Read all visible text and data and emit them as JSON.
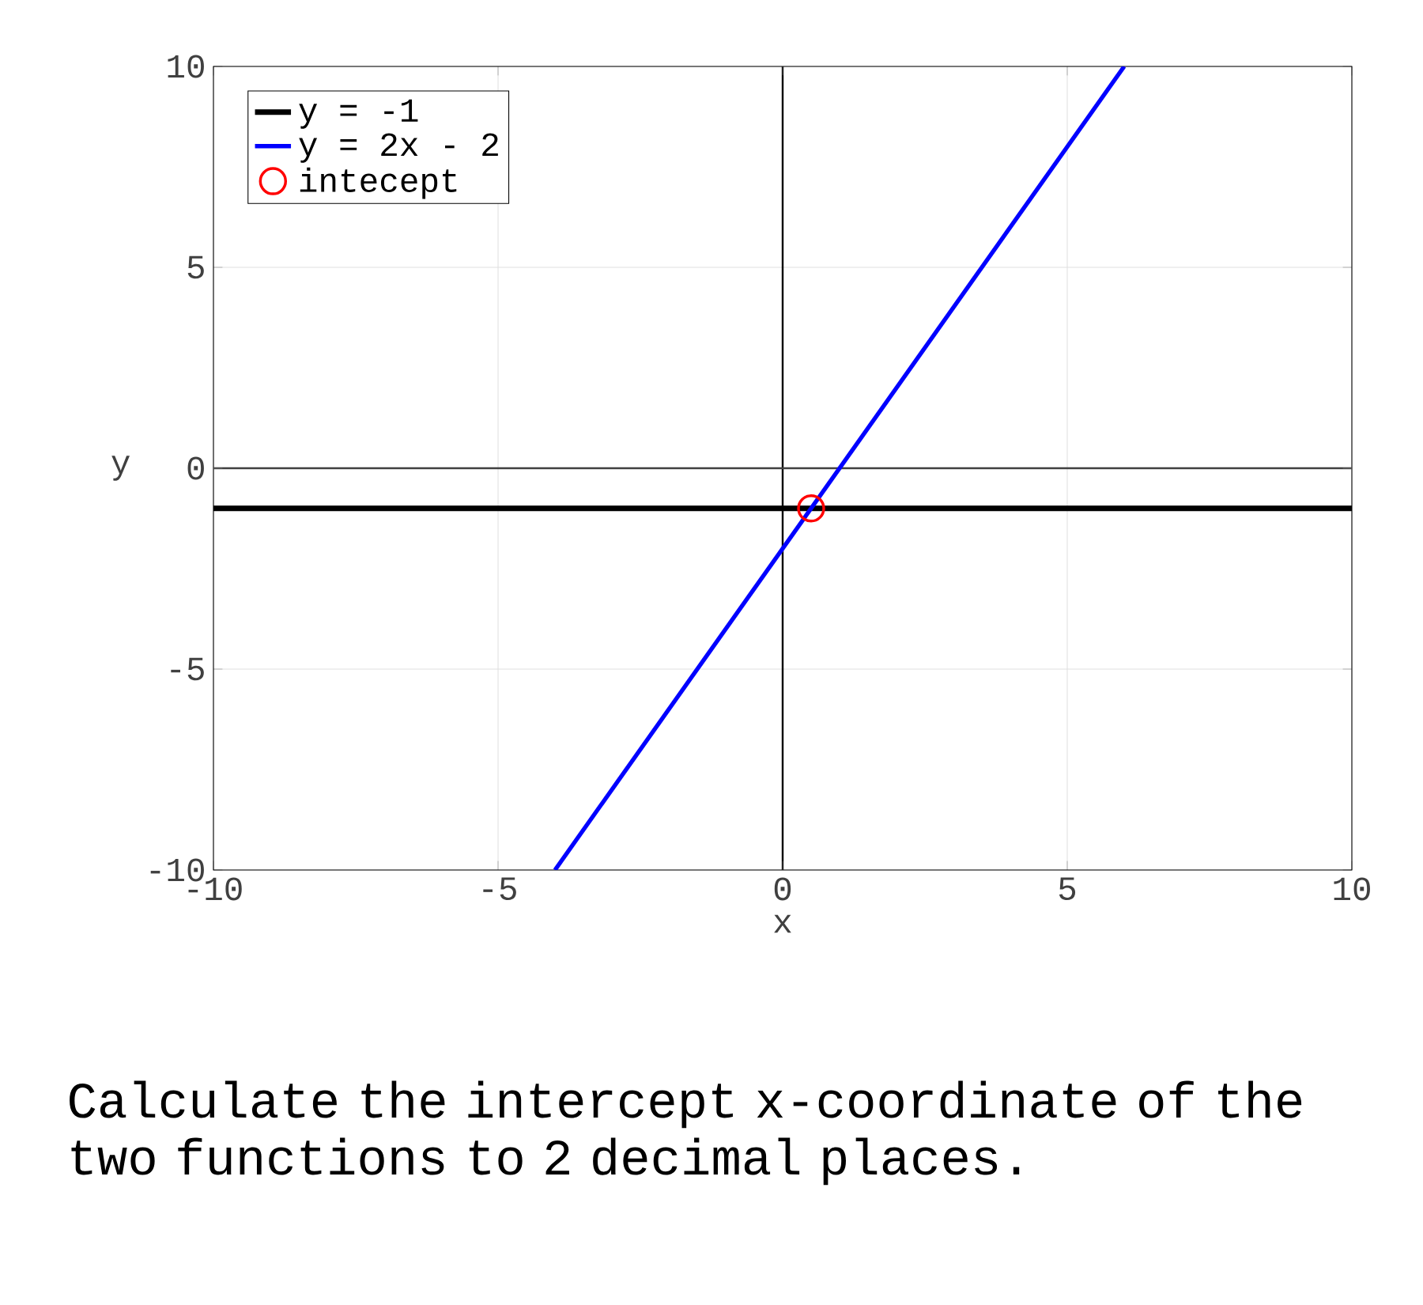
{
  "chart_data": {
    "type": "line",
    "xlabel": "x",
    "ylabel": "y",
    "xlim": [
      -10,
      10
    ],
    "ylim": [
      -10,
      10
    ],
    "xticks": [
      -10,
      -5,
      0,
      5,
      10
    ],
    "yticks": [
      -10,
      -5,
      0,
      5,
      10
    ],
    "grid": true,
    "legend": "top left",
    "series": [
      {
        "name": "y = -1",
        "color": "#000000",
        "x": [
          -10,
          10
        ],
        "values": [
          -1,
          -1
        ]
      },
      {
        "name": "y = 2x - 2",
        "color": "#0000ff",
        "x": [
          -4,
          6
        ],
        "values": [
          -10,
          10
        ]
      },
      {
        "name": "intecept",
        "color": "#ff0000",
        "type": "scatter",
        "marker": "circle",
        "x": [
          0.5
        ],
        "values": [
          -1
        ]
      }
    ],
    "ref_lines": [
      {
        "axis": "x",
        "value": 0,
        "color": "#000000"
      },
      {
        "axis": "y",
        "value": 0,
        "color": "#404040"
      }
    ],
    "annotations": [
      "Calculate the intercept x-coordinate of the two functions to 2 decimal places."
    ]
  }
}
